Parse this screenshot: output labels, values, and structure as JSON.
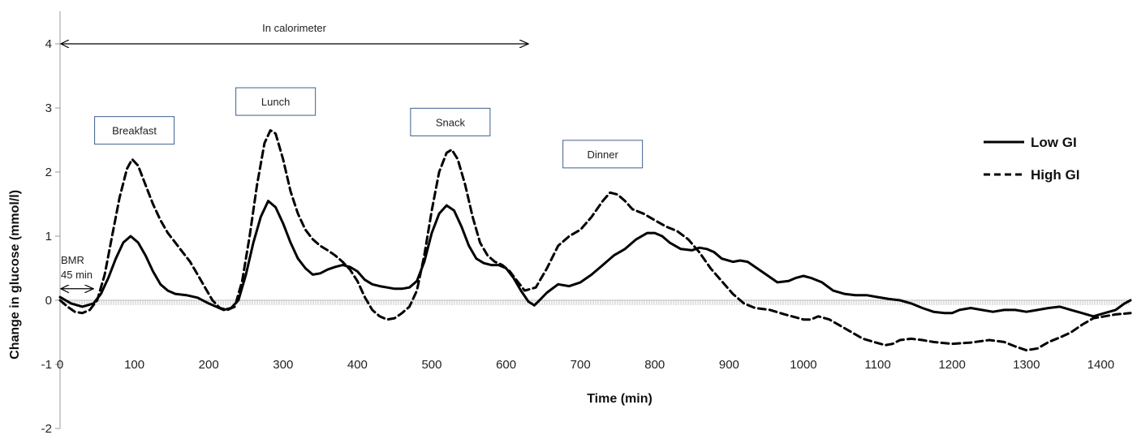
{
  "chart_data": {
    "type": "line",
    "xlabel": "Time (min)",
    "ylabel": "Change in glucose (mmol/l)",
    "xlim": [
      0,
      1440
    ],
    "ylim": [
      -2,
      4
    ],
    "x_ticks": [
      "0",
      "100",
      "200",
      "300",
      "400",
      "500",
      "600",
      "700",
      "800",
      "900",
      "1000",
      "1100",
      "1200",
      "1300",
      "1400"
    ],
    "y_ticks": [
      "-2",
      "-1",
      "0",
      "1",
      "2",
      "3",
      "4"
    ],
    "legend": "right",
    "series": [
      {
        "name": "Low GI",
        "color": "#000000",
        "dash": "solid",
        "points": [
          [
            0,
            0.05
          ],
          [
            15,
            -0.05
          ],
          [
            30,
            -0.1
          ],
          [
            45,
            -0.05
          ],
          [
            55,
            0.1
          ],
          [
            65,
            0.35
          ],
          [
            75,
            0.65
          ],
          [
            85,
            0.9
          ],
          [
            95,
            1.0
          ],
          [
            105,
            0.9
          ],
          [
            115,
            0.7
          ],
          [
            125,
            0.45
          ],
          [
            135,
            0.25
          ],
          [
            145,
            0.15
          ],
          [
            155,
            0.1
          ],
          [
            170,
            0.08
          ],
          [
            185,
            0.04
          ],
          [
            200,
            -0.05
          ],
          [
            210,
            -0.1
          ],
          [
            220,
            -0.15
          ],
          [
            230,
            -0.12
          ],
          [
            240,
            0.0
          ],
          [
            250,
            0.4
          ],
          [
            260,
            0.9
          ],
          [
            270,
            1.3
          ],
          [
            280,
            1.55
          ],
          [
            290,
            1.45
          ],
          [
            300,
            1.2
          ],
          [
            310,
            0.9
          ],
          [
            320,
            0.65
          ],
          [
            330,
            0.5
          ],
          [
            340,
            0.4
          ],
          [
            350,
            0.42
          ],
          [
            360,
            0.48
          ],
          [
            370,
            0.52
          ],
          [
            380,
            0.55
          ],
          [
            390,
            0.52
          ],
          [
            400,
            0.45
          ],
          [
            410,
            0.32
          ],
          [
            420,
            0.25
          ],
          [
            430,
            0.22
          ],
          [
            440,
            0.2
          ],
          [
            450,
            0.18
          ],
          [
            460,
            0.18
          ],
          [
            470,
            0.2
          ],
          [
            480,
            0.3
          ],
          [
            490,
            0.6
          ],
          [
            500,
            1.05
          ],
          [
            510,
            1.35
          ],
          [
            520,
            1.48
          ],
          [
            530,
            1.4
          ],
          [
            540,
            1.15
          ],
          [
            550,
            0.85
          ],
          [
            560,
            0.65
          ],
          [
            570,
            0.58
          ],
          [
            580,
            0.55
          ],
          [
            590,
            0.55
          ],
          [
            600,
            0.5
          ],
          [
            610,
            0.35
          ],
          [
            620,
            0.15
          ],
          [
            630,
            -0.02
          ],
          [
            638,
            -0.08
          ],
          [
            645,
            0.0
          ],
          [
            655,
            0.12
          ],
          [
            670,
            0.25
          ],
          [
            685,
            0.22
          ],
          [
            700,
            0.28
          ],
          [
            715,
            0.4
          ],
          [
            730,
            0.55
          ],
          [
            745,
            0.7
          ],
          [
            760,
            0.8
          ],
          [
            775,
            0.95
          ],
          [
            790,
            1.05
          ],
          [
            800,
            1.05
          ],
          [
            810,
            1.0
          ],
          [
            820,
            0.9
          ],
          [
            835,
            0.8
          ],
          [
            850,
            0.78
          ],
          [
            860,
            0.82
          ],
          [
            870,
            0.8
          ],
          [
            880,
            0.75
          ],
          [
            890,
            0.65
          ],
          [
            905,
            0.6
          ],
          [
            915,
            0.62
          ],
          [
            925,
            0.6
          ],
          [
            935,
            0.52
          ],
          [
            950,
            0.4
          ],
          [
            965,
            0.28
          ],
          [
            980,
            0.3
          ],
          [
            990,
            0.35
          ],
          [
            1000,
            0.38
          ],
          [
            1010,
            0.35
          ],
          [
            1025,
            0.28
          ],
          [
            1040,
            0.15
          ],
          [
            1055,
            0.1
          ],
          [
            1070,
            0.08
          ],
          [
            1085,
            0.08
          ],
          [
            1100,
            0.05
          ],
          [
            1115,
            0.02
          ],
          [
            1130,
            0.0
          ],
          [
            1145,
            -0.05
          ],
          [
            1160,
            -0.12
          ],
          [
            1175,
            -0.18
          ],
          [
            1190,
            -0.2
          ],
          [
            1200,
            -0.2
          ],
          [
            1210,
            -0.15
          ],
          [
            1225,
            -0.12
          ],
          [
            1240,
            -0.15
          ],
          [
            1255,
            -0.18
          ],
          [
            1270,
            -0.15
          ],
          [
            1285,
            -0.15
          ],
          [
            1300,
            -0.18
          ],
          [
            1315,
            -0.15
          ],
          [
            1330,
            -0.12
          ],
          [
            1345,
            -0.1
          ],
          [
            1360,
            -0.15
          ],
          [
            1375,
            -0.2
          ],
          [
            1390,
            -0.25
          ],
          [
            1405,
            -0.2
          ],
          [
            1420,
            -0.15
          ],
          [
            1432,
            -0.05
          ],
          [
            1440,
            0.0
          ]
        ]
      },
      {
        "name": "High GI",
        "color": "#000000",
        "dash": "dashed",
        "points": [
          [
            0,
            0.0
          ],
          [
            10,
            -0.1
          ],
          [
            20,
            -0.18
          ],
          [
            30,
            -0.2
          ],
          [
            40,
            -0.15
          ],
          [
            50,
            0.0
          ],
          [
            60,
            0.4
          ],
          [
            70,
            1.0
          ],
          [
            80,
            1.6
          ],
          [
            90,
            2.05
          ],
          [
            97,
            2.2
          ],
          [
            105,
            2.1
          ],
          [
            115,
            1.8
          ],
          [
            125,
            1.5
          ],
          [
            135,
            1.25
          ],
          [
            145,
            1.05
          ],
          [
            155,
            0.9
          ],
          [
            165,
            0.75
          ],
          [
            175,
            0.6
          ],
          [
            185,
            0.4
          ],
          [
            195,
            0.2
          ],
          [
            205,
            0.0
          ],
          [
            215,
            -0.12
          ],
          [
            225,
            -0.15
          ],
          [
            235,
            -0.1
          ],
          [
            245,
            0.3
          ],
          [
            255,
            1.0
          ],
          [
            265,
            1.8
          ],
          [
            275,
            2.45
          ],
          [
            283,
            2.65
          ],
          [
            290,
            2.6
          ],
          [
            300,
            2.2
          ],
          [
            310,
            1.7
          ],
          [
            320,
            1.35
          ],
          [
            330,
            1.1
          ],
          [
            340,
            0.95
          ],
          [
            350,
            0.85
          ],
          [
            360,
            0.78
          ],
          [
            370,
            0.7
          ],
          [
            380,
            0.6
          ],
          [
            390,
            0.48
          ],
          [
            400,
            0.3
          ],
          [
            410,
            0.05
          ],
          [
            420,
            -0.15
          ],
          [
            430,
            -0.25
          ],
          [
            440,
            -0.3
          ],
          [
            450,
            -0.28
          ],
          [
            460,
            -0.2
          ],
          [
            470,
            -0.1
          ],
          [
            480,
            0.15
          ],
          [
            490,
            0.7
          ],
          [
            500,
            1.4
          ],
          [
            510,
            2.0
          ],
          [
            520,
            2.3
          ],
          [
            527,
            2.35
          ],
          [
            535,
            2.2
          ],
          [
            545,
            1.8
          ],
          [
            555,
            1.3
          ],
          [
            565,
            0.9
          ],
          [
            575,
            0.7
          ],
          [
            585,
            0.6
          ],
          [
            595,
            0.55
          ],
          [
            605,
            0.45
          ],
          [
            615,
            0.3
          ],
          [
            625,
            0.15
          ],
          [
            640,
            0.2
          ],
          [
            655,
            0.5
          ],
          [
            670,
            0.85
          ],
          [
            685,
            1.0
          ],
          [
            700,
            1.1
          ],
          [
            715,
            1.3
          ],
          [
            730,
            1.55
          ],
          [
            740,
            1.68
          ],
          [
            750,
            1.65
          ],
          [
            760,
            1.55
          ],
          [
            770,
            1.42
          ],
          [
            785,
            1.35
          ],
          [
            800,
            1.25
          ],
          [
            815,
            1.15
          ],
          [
            830,
            1.08
          ],
          [
            845,
            0.95
          ],
          [
            860,
            0.75
          ],
          [
            875,
            0.5
          ],
          [
            890,
            0.3
          ],
          [
            905,
            0.1
          ],
          [
            920,
            -0.05
          ],
          [
            935,
            -0.12
          ],
          [
            955,
            -0.15
          ],
          [
            975,
            -0.22
          ],
          [
            1000,
            -0.3
          ],
          [
            1010,
            -0.3
          ],
          [
            1020,
            -0.25
          ],
          [
            1035,
            -0.3
          ],
          [
            1050,
            -0.4
          ],
          [
            1065,
            -0.5
          ],
          [
            1080,
            -0.6
          ],
          [
            1095,
            -0.65
          ],
          [
            1110,
            -0.7
          ],
          [
            1120,
            -0.68
          ],
          [
            1130,
            -0.62
          ],
          [
            1145,
            -0.6
          ],
          [
            1160,
            -0.62
          ],
          [
            1175,
            -0.65
          ],
          [
            1200,
            -0.68
          ],
          [
            1225,
            -0.66
          ],
          [
            1250,
            -0.62
          ],
          [
            1270,
            -0.65
          ],
          [
            1285,
            -0.72
          ],
          [
            1300,
            -0.78
          ],
          [
            1315,
            -0.75
          ],
          [
            1330,
            -0.65
          ],
          [
            1345,
            -0.58
          ],
          [
            1360,
            -0.5
          ],
          [
            1375,
            -0.38
          ],
          [
            1390,
            -0.28
          ],
          [
            1405,
            -0.25
          ],
          [
            1420,
            -0.22
          ],
          [
            1440,
            -0.2
          ]
        ]
      }
    ],
    "annotations": {
      "calorimeter": {
        "label": "In calorimeter",
        "x_start": 0,
        "x_end": 630,
        "y": 4
      },
      "bmr": {
        "label_line1": "BMR",
        "label_line2": "45 min",
        "x_start": 0,
        "x_end": 45,
        "y": 0.18
      },
      "meals": [
        {
          "label": "Breakfast",
          "x": 100,
          "y": 2.65
        },
        {
          "label": "Lunch",
          "x": 290,
          "y": 3.1
        },
        {
          "label": "Snack",
          "x": 525,
          "y": 2.78
        },
        {
          "label": "Dinner",
          "x": 730,
          "y": 2.28
        }
      ]
    }
  }
}
